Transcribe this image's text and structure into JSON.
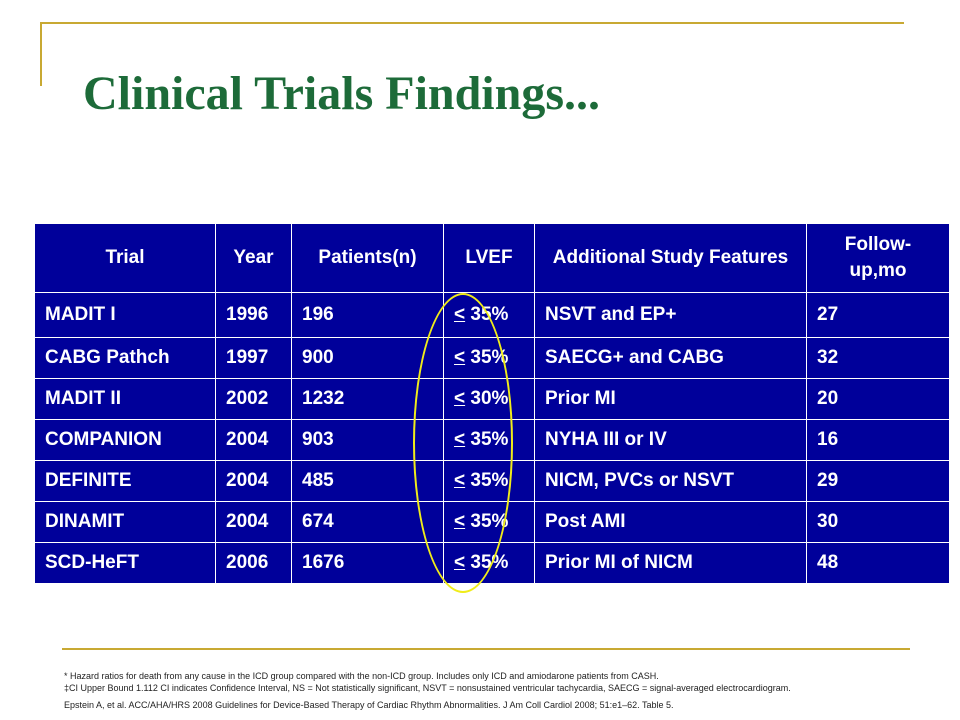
{
  "slide": {
    "title": "Clinical Trials Findings..."
  },
  "table": {
    "headers": [
      "Trial",
      "Year",
      "Patients(n)",
      "LVEF",
      "Additional Study Features",
      "Follow-up,mo"
    ],
    "rows": [
      {
        "trial": "MADIT I",
        "year": "1996",
        "patients": "196",
        "lvef_cmp": "<",
        "lvef_val": "35%",
        "features": "NSVT and EP+",
        "followup": "27"
      },
      {
        "trial": "CABG Pathch",
        "year": "1997",
        "patients": "900",
        "lvef_cmp": "<",
        "lvef_val": "35%",
        "features": "SAECG+ and CABG",
        "followup": "32"
      },
      {
        "trial": "MADIT II",
        "year": "2002",
        "patients": "1232",
        "lvef_cmp": "<",
        "lvef_val": "30%",
        "features": "Prior MI",
        "followup": "20"
      },
      {
        "trial": "COMPANION",
        "year": "2004",
        "patients": "903",
        "lvef_cmp": "<",
        "lvef_val": "35%",
        "features": "NYHA III or IV",
        "followup": "16"
      },
      {
        "trial": "DEFINITE",
        "year": "2004",
        "patients": "485",
        "lvef_cmp": "<",
        "lvef_val": "35%",
        "features": "NICM, PVCs or NSVT",
        "followup": "29"
      },
      {
        "trial": "DINAMIT",
        "year": "2004",
        "patients": "674",
        "lvef_cmp": "<",
        "lvef_val": "35%",
        "features": "Post AMI",
        "followup": "30"
      },
      {
        "trial": "SCD-HeFT",
        "year": "2006",
        "patients": "1676",
        "lvef_cmp": "<",
        "lvef_val": "35%",
        "features": "Prior MI of NICM",
        "followup": "48"
      }
    ]
  },
  "footnotes": {
    "note1": "* Hazard ratios for death from any cause in the ICD group compared with the non-ICD group. Includes only ICD and amiodarone patients from CASH.",
    "note2": "‡CI Upper Bound 1.112 CI indicates Confidence Interval, NS = Not statistically significant, NSVT = nonsustained ventricular tachycardia, SAECG = signal-averaged electrocardiogram.",
    "reference": "Epstein A, et al. ACC/AHA/HRS 2008 Guidelines for Device-Based Therapy of Cardiac Rhythm Abnormalities. J Am Coll Cardiol 2008; 51:e1–62. Table 5."
  },
  "colors": {
    "title": "#1d6b39",
    "table_bg": "#00009a",
    "table_text": "#ffffff",
    "accent_lines": "#c8a933",
    "highlight": "#f0ec1a"
  }
}
